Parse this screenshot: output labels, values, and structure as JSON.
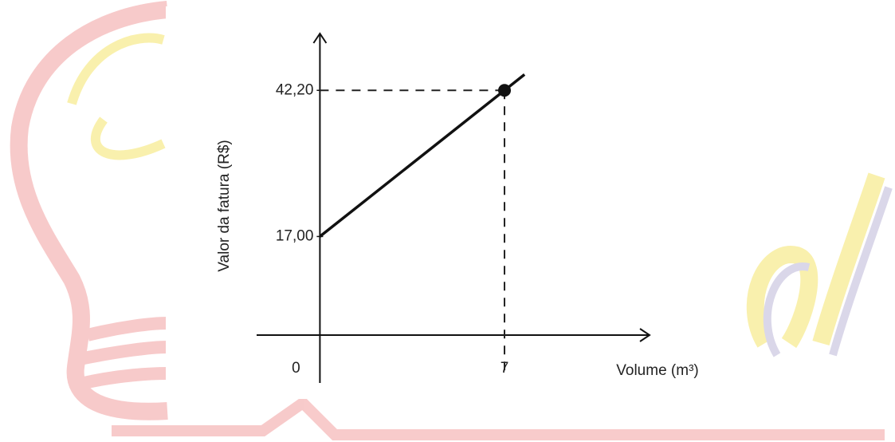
{
  "chart_data": {
    "type": "line",
    "x_label": "Volume (m³)",
    "y_label": "Valor da fatura (R$)",
    "x": [
      0,
      7
    ],
    "series": [
      {
        "values": [
          17,
          42.2
        ],
        "color": "#111111"
      }
    ],
    "xlim": [
      -2.4,
      12.5
    ],
    "ylim": [
      0,
      52
    ],
    "xticks": [
      0,
      7
    ],
    "yticks": [
      {
        "value": 17,
        "label": "17,00"
      },
      {
        "value": 42.2,
        "label": "42,20"
      }
    ]
  }
}
